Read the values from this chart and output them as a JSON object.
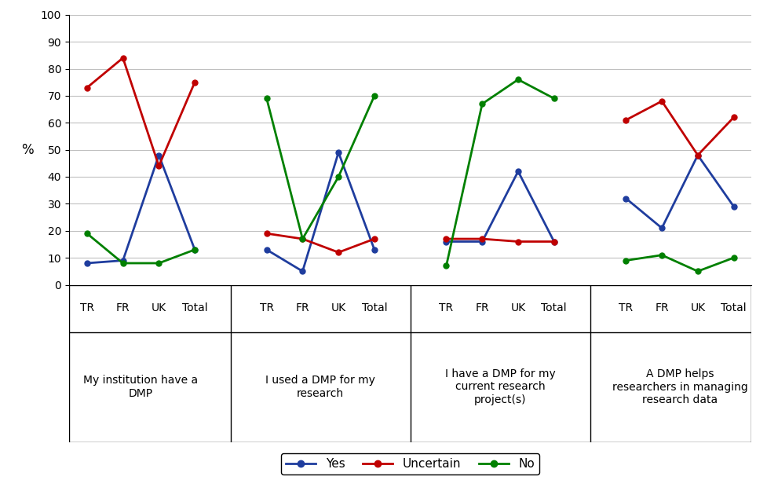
{
  "groups": [
    "My institution have a\nDMP",
    "I used a DMP for my\nresearch",
    "I have a DMP for my\ncurrent research\nproject(s)",
    "A DMP helps\nresearchers in managing\nresearch data"
  ],
  "sub_labels": [
    "TR",
    "FR",
    "UK",
    "Total"
  ],
  "yes_values": [
    8,
    9,
    48,
    13,
    13,
    5,
    49,
    13,
    16,
    16,
    42,
    16,
    32,
    21,
    48,
    29
  ],
  "uncertain_values": [
    73,
    84,
    44,
    75,
    19,
    17,
    12,
    17,
    17,
    17,
    16,
    16,
    61,
    68,
    48,
    62
  ],
  "no_values": [
    19,
    8,
    8,
    13,
    69,
    17,
    40,
    70,
    7,
    67,
    76,
    69,
    9,
    11,
    5,
    10
  ],
  "yes_color": "#1f3d9e",
  "uncertain_color": "#c00000",
  "no_color": "#008000",
  "ylabel": "%",
  "ylim": [
    0,
    100
  ],
  "yticks": [
    0,
    10,
    20,
    30,
    40,
    50,
    60,
    70,
    80,
    90,
    100
  ],
  "figsize": [
    9.77,
    6.25
  ],
  "dpi": 100,
  "legend_labels": [
    "Yes",
    "Uncertain",
    "No"
  ]
}
